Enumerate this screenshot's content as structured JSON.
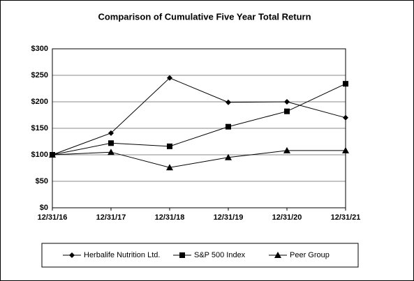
{
  "chart_data": {
    "type": "line",
    "title": "Comparison of Cumulative Five Year Total Return",
    "categories": [
      "12/31/16",
      "12/31/17",
      "12/31/18",
      "12/31/19",
      "12/31/20",
      "12/31/21"
    ],
    "series": [
      {
        "name": "Herbalife Nutrition Ltd.",
        "color": "#000000",
        "marker": "diamond",
        "values": [
          100,
          141,
          245,
          199,
          200,
          170
        ]
      },
      {
        "name": "S&P 500 Index",
        "color": "#000000",
        "marker": "square",
        "values": [
          100,
          122,
          116,
          153,
          182,
          234
        ]
      },
      {
        "name": "Peer Group",
        "color": "#000000",
        "marker": "triangle",
        "values": [
          100,
          105,
          76,
          95,
          108,
          108
        ]
      }
    ],
    "ylim": [
      0,
      300
    ],
    "yticks": [
      {
        "value": 0,
        "label": "$0"
      },
      {
        "value": 50,
        "label": "$50"
      },
      {
        "value": 100,
        "label": "$100"
      },
      {
        "value": 150,
        "label": "$150"
      },
      {
        "value": 200,
        "label": "$200"
      },
      {
        "value": 250,
        "label": "$250"
      },
      {
        "value": 300,
        "label": "$300"
      }
    ],
    "grid": true,
    "legend": "bottom"
  }
}
